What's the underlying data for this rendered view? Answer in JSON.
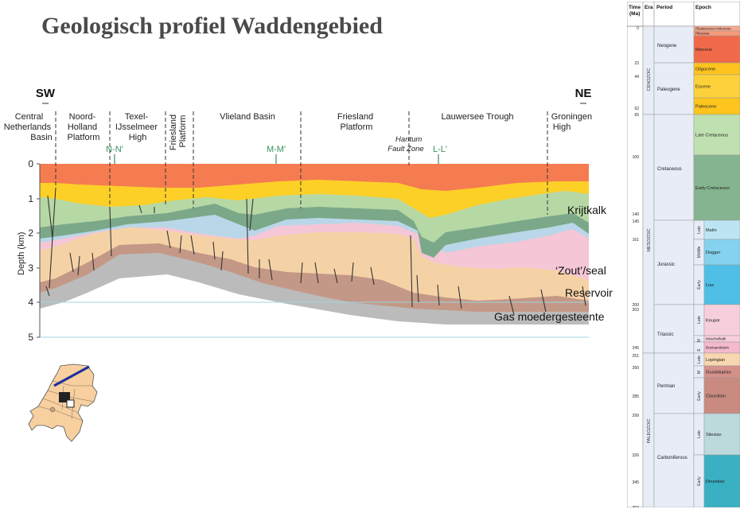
{
  "title": "Geologisch profiel Waddengebied",
  "profile": {
    "ends": {
      "left": "SW",
      "right": "NE"
    },
    "regions": [
      {
        "lines": [
          "Central",
          "Netherlands",
          "Basin"
        ]
      },
      {
        "lines": [
          "Noord-",
          "Holland",
          "Platform"
        ]
      },
      {
        "lines": [
          "Texel-",
          "IJsselmeer",
          "High"
        ]
      },
      {
        "lines": [
          "Friesland",
          "Platform"
        ],
        "rotated": true
      },
      {
        "lines": [
          "Vlieland Basin"
        ]
      },
      {
        "lines": [
          "Friesland",
          "Platform"
        ]
      },
      {
        "lines": [
          "Lauwersee Trough"
        ]
      },
      {
        "lines": [
          "Groningen",
          "High"
        ]
      }
    ],
    "fault_zone": [
      "Hantum",
      "Fault Zone"
    ],
    "section_marks": [
      "N-N'",
      "M-M'",
      "L-L'"
    ],
    "depth_axis": {
      "label": "Depth (km)",
      "ticks": [
        "0",
        "1",
        "2",
        "3",
        "4",
        "5"
      ],
      "range_km": [
        0,
        5
      ]
    },
    "annotations": [
      "Krijtkalk",
      "‘Zout’/seal",
      "Reservoir",
      "Gas moedergesteente"
    ],
    "colors": {
      "tertiary": "#f47c50",
      "upper_cretaceous": "#fdd028",
      "chalk": "#b6d8a5",
      "chalk_dark": "#7ba888",
      "jurassic": "#b9d7e8",
      "zechstein_pink": "#f4c6d6",
      "triassic": "#f5d2a6",
      "reservoir": "#c49886",
      "source": "#bbbbbb",
      "section_line": "#3a8f5e",
      "depth_line": "#9fd4e2"
    }
  },
  "time_chart": {
    "headers": {
      "time": [
        "Time",
        "(Ma)"
      ],
      "era": "Era",
      "period": "Period",
      "epoch": "Epoch"
    },
    "eras": [
      "CENOZOIC",
      "MESOZOIC",
      "PALEOZOIC"
    ],
    "periods": [
      "Neogene",
      "Paleogene",
      "Cretaceous",
      "Jurassic",
      "Triassic",
      "Permian",
      "Carboniferous"
    ],
    "subepochs": [
      "Late",
      "Middle",
      "Early",
      "Late",
      "E",
      "M",
      "Late",
      "M",
      "Early",
      "Late",
      "Early"
    ],
    "time_ticks": [
      "0",
      "23",
      "44",
      "62",
      "65",
      "100",
      "140",
      "145",
      "161",
      "200",
      "203",
      "245",
      "251",
      "260",
      "285",
      "299",
      "326",
      "345",
      "359"
    ],
    "epochs": [
      {
        "name": "Pleistocene-Holocene",
        "color": "#f7a98e"
      },
      {
        "name": "Pliocene",
        "color": "#f59a7a"
      },
      {
        "name": "Miocene",
        "color": "#f06a4a"
      },
      {
        "name": "Oligocene",
        "color": "#fdc31e"
      },
      {
        "name": "Eocene",
        "color": "#fdd13a"
      },
      {
        "name": "Paleocene",
        "color": "#fdc51e"
      },
      {
        "name": "Late Cretaceous",
        "color": "#bfe0b0"
      },
      {
        "name": "Early Cretaceous",
        "color": "#84b590"
      },
      {
        "name": "Malm",
        "color": "#bde4f2"
      },
      {
        "name": "Dogger",
        "color": "#84d2ee"
      },
      {
        "name": "Lias",
        "color": "#4fbfe6"
      },
      {
        "name": "Keuper",
        "color": "#f7cfdc"
      },
      {
        "name": "Muschelkalk",
        "color": "#f7cfdc"
      },
      {
        "name": "Buntsandstein",
        "color": "#f4b9cc"
      },
      {
        "name": "Lopingian",
        "color": "#f8d7b0"
      },
      {
        "name": "Guadalupian",
        "color": "#d4918a"
      },
      {
        "name": "Cisuralian",
        "color": "#c98b80"
      },
      {
        "name": "Silesian",
        "color": "#bcd9dc"
      },
      {
        "name": "Dinantian",
        "color": "#3ab0c3"
      }
    ]
  }
}
